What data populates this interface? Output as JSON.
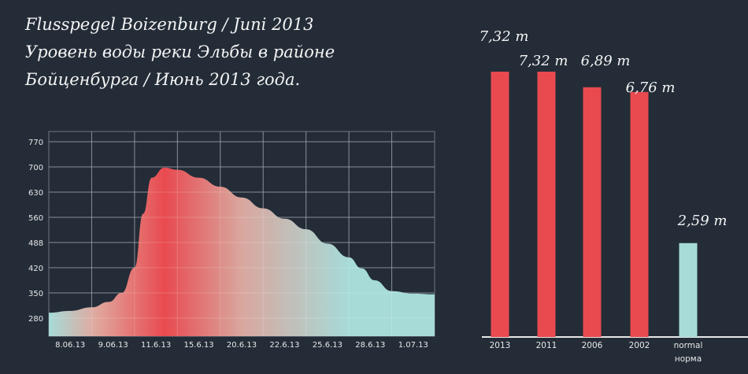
{
  "title": {
    "line1": "Flusspegel Boizenburg / Juni 2013",
    "line2": "Уровень воды реки Эльбы в районе",
    "line3": "Бойценбурга / Июнь 2013 года."
  },
  "colors": {
    "background": "#232c37",
    "red": "#e84a4f",
    "teal": "#a6dbd8",
    "grid": "#6e7681"
  },
  "chart_data": [
    {
      "type": "area",
      "title": "",
      "xlabel": "",
      "ylabel": "",
      "x_ticks": [
        "8.06.13",
        "9.06.13",
        "11.6.13",
        "15.6.13",
        "20.6.13",
        "22.6.13",
        "25.6.13",
        "28.6.13",
        "1.07.13"
      ],
      "y_ticks": [
        280,
        350,
        420,
        488,
        560,
        630,
        700,
        770
      ],
      "grid": true,
      "gradient": [
        "teal",
        "red",
        "teal"
      ],
      "series": [
        {
          "x": [
            0,
            0.5,
            1,
            1.4,
            1.7,
            2,
            2.2,
            2.4,
            2.7,
            3,
            3.5,
            4,
            4.5,
            5,
            5.5,
            6,
            6.5,
            7,
            7.3,
            7.6,
            8,
            8.5,
            9
          ],
          "values": [
            295,
            300,
            310,
            325,
            350,
            420,
            570,
            670,
            698,
            692,
            670,
            645,
            615,
            585,
            556,
            526,
            485,
            448,
            418,
            385,
            355,
            348,
            346
          ]
        }
      ]
    },
    {
      "type": "bar",
      "title": "",
      "categories": [
        "2013",
        "2011",
        "2006",
        "2002",
        "normal\nнорма"
      ],
      "category_lines": [
        [
          "2013"
        ],
        [
          "2011"
        ],
        [
          "2006"
        ],
        [
          "2002"
        ],
        [
          "normal",
          "норма"
        ]
      ],
      "values": [
        7.32,
        7.32,
        6.89,
        6.76,
        2.59
      ],
      "data_labels": [
        "7,32 m",
        "7,32 m",
        "6,89 m",
        "6,76 m",
        "2,59 m"
      ],
      "bar_colors": [
        "#e84a4f",
        "#e84a4f",
        "#e84a4f",
        "#e84a4f",
        "#a6dbd8"
      ],
      "grid": false
    }
  ]
}
